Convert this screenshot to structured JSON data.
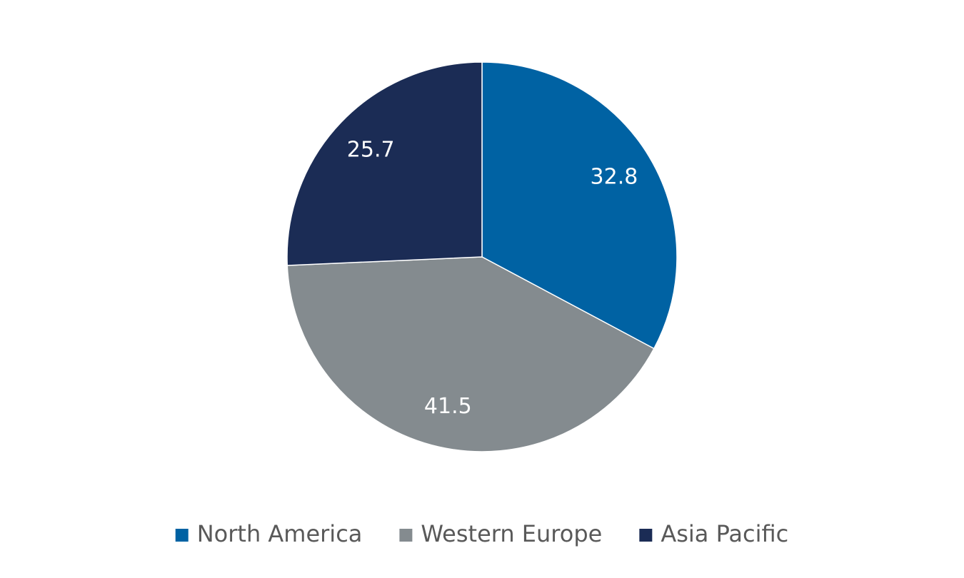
{
  "chart_data": {
    "type": "pie",
    "categories": [
      "North America",
      "Western Europe",
      "Asia Pacific"
    ],
    "values": [
      32.8,
      41.5,
      25.7
    ],
    "colors": [
      "#0062a3",
      "#848b8f",
      "#1b2c55"
    ],
    "legend": "bottom"
  }
}
